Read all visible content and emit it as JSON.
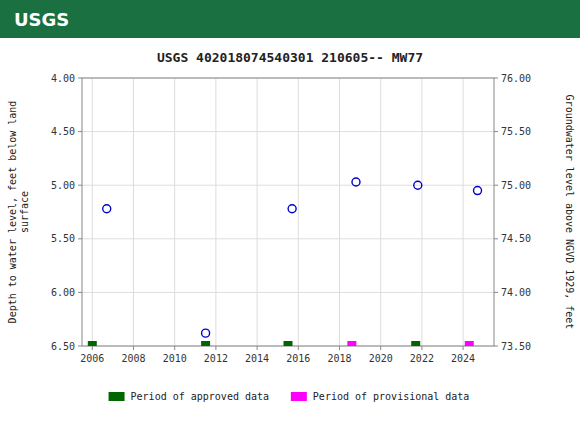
{
  "chart_data": {
    "type": "scatter",
    "title": "USGS 402018074540301 210605-- MW77",
    "annotations": [
      "USGS"
    ],
    "ylabel": "Depth to water level, feet below land\nsurface",
    "y2label": "Groundwater level above NGVD 1929, feet",
    "xlim": [
      2005.5,
      2025.5
    ],
    "xticks": [
      2006,
      2008,
      2010,
      2012,
      2014,
      2016,
      2018,
      2020,
      2022,
      2024
    ],
    "ylim": [
      6.5,
      4.0
    ],
    "yticks": [
      {
        "value": 4.0,
        "label": "4.00"
      },
      {
        "value": 4.5,
        "label": "4.50"
      },
      {
        "value": 5.0,
        "label": "5.00"
      },
      {
        "value": 5.5,
        "label": "5.50"
      },
      {
        "value": 6.0,
        "label": "6.00"
      },
      {
        "value": 6.5,
        "label": "6.50"
      }
    ],
    "y2lim": [
      73.5,
      76.0
    ],
    "y2ticks": [
      {
        "value": 73.5,
        "label": "73.50"
      },
      {
        "value": 74.0,
        "label": "74.00"
      },
      {
        "value": 74.5,
        "label": "74.50"
      },
      {
        "value": 75.0,
        "label": "75.00"
      },
      {
        "value": 75.5,
        "label": "75.50"
      },
      {
        "value": 76.0,
        "label": "76.00"
      }
    ],
    "grid": true,
    "legend": "bottom",
    "series": [
      {
        "type": "scatter",
        "marker": "circle",
        "color": "#0000cc",
        "x": [
          2006.7,
          2011.5,
          2015.7,
          2018.8,
          2021.8,
          2024.7
        ],
        "values": [
          5.22,
          6.38,
          5.22,
          4.97,
          5.0,
          5.05
        ]
      },
      {
        "type": "period",
        "name": "Period of approved data",
        "color": "#006600",
        "x": [
          2006.0,
          2011.5,
          2015.5,
          2021.7
        ]
      },
      {
        "type": "period",
        "name": "Period of provisional data",
        "color": "#ff00ff",
        "x": [
          2018.6,
          2024.3
        ]
      }
    ]
  }
}
